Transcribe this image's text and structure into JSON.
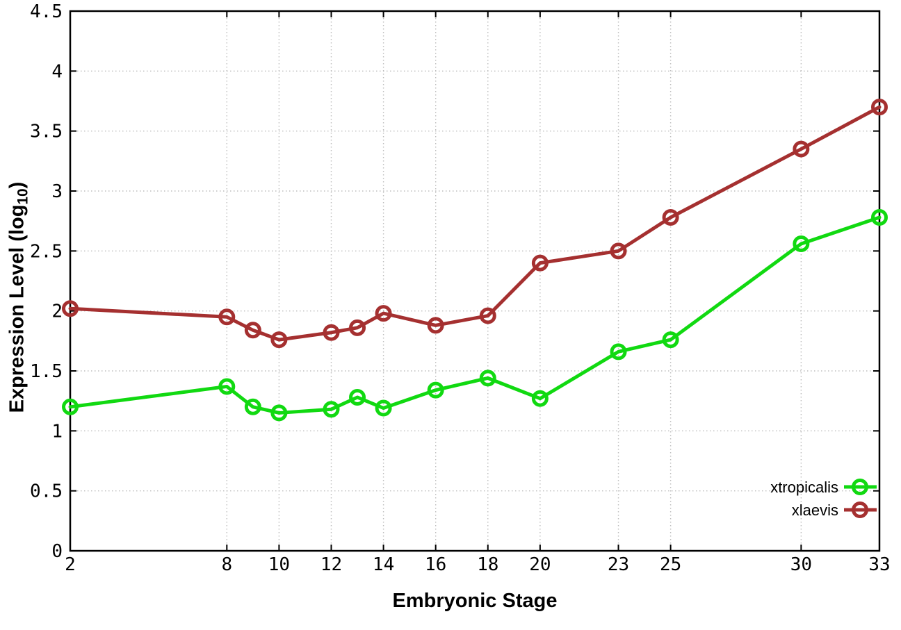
{
  "chart_data": {
    "type": "line",
    "title": "",
    "xlabel": "Embryonic Stage",
    "ylabel": "Expression Level (log10)",
    "ylabel_parts": {
      "pre": "Expression Level (log",
      "sub": "10",
      "post": ")"
    },
    "x": [
      2,
      8,
      9,
      10,
      12,
      13,
      14,
      16,
      18,
      20,
      23,
      25,
      30,
      33
    ],
    "series": [
      {
        "name": "xtropicalis",
        "color": "#11d911",
        "values": [
          1.2,
          1.37,
          1.2,
          1.15,
          1.18,
          1.28,
          1.19,
          1.34,
          1.44,
          1.27,
          1.66,
          1.76,
          2.56,
          2.78
        ]
      },
      {
        "name": "xlaevis",
        "color": "#a53030",
        "values": [
          2.02,
          1.95,
          1.84,
          1.76,
          1.82,
          1.86,
          1.98,
          1.88,
          1.96,
          2.4,
          2.5,
          2.78,
          3.35,
          3.7
        ]
      }
    ],
    "x_tick_labels": [
      "2",
      "8",
      "10",
      "12",
      "14",
      "16",
      "18",
      "20",
      "23",
      "25",
      "30",
      "33"
    ],
    "y_tick_labels": [
      "0",
      "0.5",
      "1",
      "1.5",
      "2",
      "2.5",
      "3",
      "3.5",
      "4",
      "4.5"
    ],
    "xlim": [
      2,
      33
    ],
    "ylim": [
      0,
      4.5
    ],
    "grid": true,
    "grid_style": "dotted",
    "legend_position": "bottom-right",
    "colors": {
      "border": "#000000",
      "grid": "#bdbdbd",
      "text": "#000000",
      "background": "#ffffff"
    },
    "marker": "open-circle",
    "line_style": "linespoints"
  }
}
